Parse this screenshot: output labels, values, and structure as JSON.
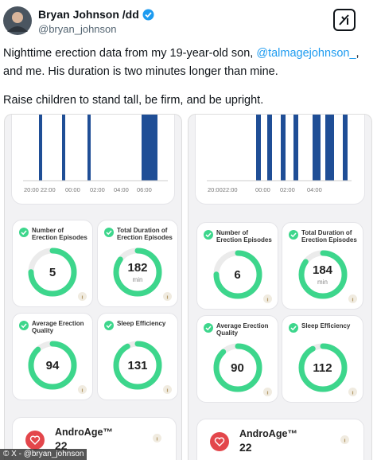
{
  "author": {
    "name": "Bryan Johnson /dd",
    "handle": "@bryan_johnson"
  },
  "tweet": {
    "text_start": "Nighttime erection data from my 19-year-old son,",
    "mention": "@talmagejohnson_",
    "text_comma": ",",
    "text_line2": "and me. His duration is two minutes longer than mine.",
    "text_line3": "Raise children to stand tall, be firm, and be upright."
  },
  "panels": [
    {
      "time_labels": [
        "20:00 22:00",
        "00:00",
        "02:00",
        "04:00",
        "06:00"
      ],
      "cards": [
        {
          "label": "Number of Erection Episodes",
          "value": "5"
        },
        {
          "label": "Total Duration of Erection Episodes",
          "value": "182",
          "unit": "min"
        },
        {
          "label": "Average Erection Quality",
          "value": "94"
        },
        {
          "label": "Sleep Efficiency",
          "value": "131"
        }
      ],
      "androage": {
        "label": "AndroAge™",
        "value": "22"
      }
    },
    {
      "time_labels": [
        "20:0022:00",
        "00:00",
        "02:00",
        "04:00"
      ],
      "cards": [
        {
          "label": "Number of Erection Episodes",
          "value": "6"
        },
        {
          "label": "Total Duration of Erection Episodes",
          "value": "184",
          "unit": "min"
        },
        {
          "label": "Average Erection Quality",
          "value": "90"
        },
        {
          "label": "Sleep Efficiency",
          "value": "112"
        }
      ],
      "androage": {
        "label": "AndroAge™",
        "value": "22"
      }
    }
  ],
  "caption": "© X - @bryan_johnson"
}
